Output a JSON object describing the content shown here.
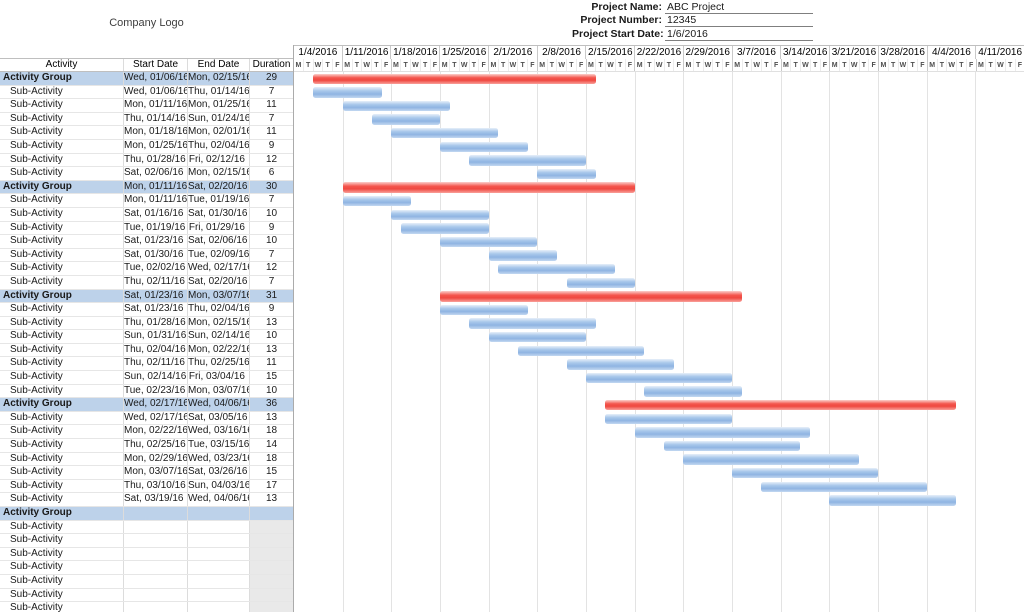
{
  "header": {
    "company_logo": "Company Logo",
    "project_fields": [
      {
        "label": "Project Name:",
        "value": "ABC Project"
      },
      {
        "label": "Project Number:",
        "value": "12345"
      },
      {
        "label": "Project Start Date:",
        "value": "1/6/2016"
      }
    ]
  },
  "table": {
    "columns": [
      "Activity",
      "Start Date",
      "End Date",
      "Duration"
    ]
  },
  "colors": {
    "group_row_bg": "#bdd2ea",
    "group_bar_light": "#fbd0cc",
    "group_bar_dark": "#f4564e",
    "sub_bar_light": "#e7eff9",
    "sub_bar_dark": "#8fb4e2",
    "grid_line": "#e3e3e3",
    "header_line": "#bfbfbf"
  },
  "chart_data": {
    "type": "bar",
    "subtype": "gantt",
    "title": "",
    "x_axis": {
      "unit": "weekdays (Mon-Fri), weekly groups",
      "weeks": [
        "1/4/2016",
        "1/11/2016",
        "1/18/2016",
        "1/25/2016",
        "2/1/2016",
        "2/8/2016",
        "2/15/2016",
        "2/22/2016",
        "2/29/2016",
        "3/7/2016",
        "3/14/2016",
        "3/21/2016",
        "3/28/2016",
        "4/4/2016",
        "4/11/2016"
      ],
      "day_letters": [
        "M",
        "T",
        "W",
        "T",
        "F"
      ]
    },
    "tasks": [
      {
        "name": "Activity Group",
        "kind": "group",
        "start": "Wed, 01/06/16",
        "end": "Mon, 02/15/16",
        "duration": 29,
        "bar_start_day": 2,
        "bar_end_day": 30
      },
      {
        "name": "Sub-Activity",
        "kind": "sub",
        "start": "Wed, 01/06/16",
        "end": "Thu, 01/14/16",
        "duration": 7,
        "bar_start_day": 2,
        "bar_end_day": 8
      },
      {
        "name": "Sub-Activity",
        "kind": "sub",
        "start": "Mon, 01/11/16",
        "end": "Mon, 01/25/16",
        "duration": 11,
        "bar_start_day": 5,
        "bar_end_day": 15
      },
      {
        "name": "Sub-Activity",
        "kind": "sub",
        "start": "Thu, 01/14/16",
        "end": "Sun, 01/24/16",
        "duration": 7,
        "bar_start_day": 8,
        "bar_end_day": 14
      },
      {
        "name": "Sub-Activity",
        "kind": "sub",
        "start": "Mon, 01/18/16",
        "end": "Mon, 02/01/16",
        "duration": 11,
        "bar_start_day": 10,
        "bar_end_day": 20
      },
      {
        "name": "Sub-Activity",
        "kind": "sub",
        "start": "Mon, 01/25/16",
        "end": "Thu, 02/04/16",
        "duration": 9,
        "bar_start_day": 15,
        "bar_end_day": 23
      },
      {
        "name": "Sub-Activity",
        "kind": "sub",
        "start": "Thu, 01/28/16",
        "end": "Fri, 02/12/16",
        "duration": 12,
        "bar_start_day": 18,
        "bar_end_day": 29
      },
      {
        "name": "Sub-Activity",
        "kind": "sub",
        "start": "Sat, 02/06/16",
        "end": "Mon, 02/15/16",
        "duration": 6,
        "bar_start_day": 25,
        "bar_end_day": 30
      },
      {
        "name": "Activity Group",
        "kind": "group",
        "start": "Mon, 01/11/16",
        "end": "Sat, 02/20/16",
        "duration": 30,
        "bar_start_day": 5,
        "bar_end_day": 34
      },
      {
        "name": "Sub-Activity",
        "kind": "sub",
        "start": "Mon, 01/11/16",
        "end": "Tue, 01/19/16",
        "duration": 7,
        "bar_start_day": 5,
        "bar_end_day": 11
      },
      {
        "name": "Sub-Activity",
        "kind": "sub",
        "start": "Sat, 01/16/16",
        "end": "Sat, 01/30/16",
        "duration": 10,
        "bar_start_day": 10,
        "bar_end_day": 19
      },
      {
        "name": "Sub-Activity",
        "kind": "sub",
        "start": "Tue, 01/19/16",
        "end": "Fri, 01/29/16",
        "duration": 9,
        "bar_start_day": 11,
        "bar_end_day": 19
      },
      {
        "name": "Sub-Activity",
        "kind": "sub",
        "start": "Sat, 01/23/16",
        "end": "Sat, 02/06/16",
        "duration": 10,
        "bar_start_day": 15,
        "bar_end_day": 24
      },
      {
        "name": "Sub-Activity",
        "kind": "sub",
        "start": "Sat, 01/30/16",
        "end": "Tue, 02/09/16",
        "duration": 7,
        "bar_start_day": 20,
        "bar_end_day": 26
      },
      {
        "name": "Sub-Activity",
        "kind": "sub",
        "start": "Tue, 02/02/16",
        "end": "Wed, 02/17/16",
        "duration": 12,
        "bar_start_day": 21,
        "bar_end_day": 32
      },
      {
        "name": "Sub-Activity",
        "kind": "sub",
        "start": "Thu, 02/11/16",
        "end": "Sat, 02/20/16",
        "duration": 7,
        "bar_start_day": 28,
        "bar_end_day": 34
      },
      {
        "name": "Activity Group",
        "kind": "group",
        "start": "Sat, 01/23/16",
        "end": "Mon, 03/07/16",
        "duration": 31,
        "bar_start_day": 15,
        "bar_end_day": 45
      },
      {
        "name": "Sub-Activity",
        "kind": "sub",
        "start": "Sat, 01/23/16",
        "end": "Thu, 02/04/16",
        "duration": 9,
        "bar_start_day": 15,
        "bar_end_day": 23
      },
      {
        "name": "Sub-Activity",
        "kind": "sub",
        "start": "Thu, 01/28/16",
        "end": "Mon, 02/15/16",
        "duration": 13,
        "bar_start_day": 18,
        "bar_end_day": 30
      },
      {
        "name": "Sub-Activity",
        "kind": "sub",
        "start": "Sun, 01/31/16",
        "end": "Sun, 02/14/16",
        "duration": 10,
        "bar_start_day": 20,
        "bar_end_day": 29
      },
      {
        "name": "Sub-Activity",
        "kind": "sub",
        "start": "Thu, 02/04/16",
        "end": "Mon, 02/22/16",
        "duration": 13,
        "bar_start_day": 23,
        "bar_end_day": 35
      },
      {
        "name": "Sub-Activity",
        "kind": "sub",
        "start": "Thu, 02/11/16",
        "end": "Thu, 02/25/16",
        "duration": 11,
        "bar_start_day": 28,
        "bar_end_day": 38
      },
      {
        "name": "Sub-Activity",
        "kind": "sub",
        "start": "Sun, 02/14/16",
        "end": "Fri, 03/04/16",
        "duration": 15,
        "bar_start_day": 30,
        "bar_end_day": 44
      },
      {
        "name": "Sub-Activity",
        "kind": "sub",
        "start": "Tue, 02/23/16",
        "end": "Mon, 03/07/16",
        "duration": 10,
        "bar_start_day": 36,
        "bar_end_day": 45
      },
      {
        "name": "Activity Group",
        "kind": "group",
        "start": "Wed, 02/17/16",
        "end": "Wed, 04/06/16",
        "duration": 36,
        "bar_start_day": 32,
        "bar_end_day": 67
      },
      {
        "name": "Sub-Activity",
        "kind": "sub",
        "start": "Wed, 02/17/16",
        "end": "Sat, 03/05/16",
        "duration": 13,
        "bar_start_day": 32,
        "bar_end_day": 44
      },
      {
        "name": "Sub-Activity",
        "kind": "sub",
        "start": "Mon, 02/22/16",
        "end": "Wed, 03/16/16",
        "duration": 18,
        "bar_start_day": 35,
        "bar_end_day": 52
      },
      {
        "name": "Sub-Activity",
        "kind": "sub",
        "start": "Thu, 02/25/16",
        "end": "Tue, 03/15/16",
        "duration": 14,
        "bar_start_day": 38,
        "bar_end_day": 51
      },
      {
        "name": "Sub-Activity",
        "kind": "sub",
        "start": "Mon, 02/29/16",
        "end": "Wed, 03/23/16",
        "duration": 18,
        "bar_start_day": 40,
        "bar_end_day": 57
      },
      {
        "name": "Sub-Activity",
        "kind": "sub",
        "start": "Mon, 03/07/16",
        "end": "Sat, 03/26/16",
        "duration": 15,
        "bar_start_day": 45,
        "bar_end_day": 59
      },
      {
        "name": "Sub-Activity",
        "kind": "sub",
        "start": "Thu, 03/10/16",
        "end": "Sun, 04/03/16",
        "duration": 17,
        "bar_start_day": 48,
        "bar_end_day": 64
      },
      {
        "name": "Sub-Activity",
        "kind": "sub",
        "start": "Sat, 03/19/16",
        "end": "Wed, 04/06/16",
        "duration": 13,
        "bar_start_day": 55,
        "bar_end_day": 67
      },
      {
        "name": "Activity Group",
        "kind": "group",
        "start": "",
        "end": "",
        "duration": null,
        "bar_start_day": null,
        "bar_end_day": null
      },
      {
        "name": "Sub-Activity",
        "kind": "sub",
        "start": "",
        "end": "",
        "duration": null,
        "bar_start_day": null,
        "bar_end_day": null
      },
      {
        "name": "Sub-Activity",
        "kind": "sub",
        "start": "",
        "end": "",
        "duration": null,
        "bar_start_day": null,
        "bar_end_day": null
      },
      {
        "name": "Sub-Activity",
        "kind": "sub",
        "start": "",
        "end": "",
        "duration": null,
        "bar_start_day": null,
        "bar_end_day": null
      },
      {
        "name": "Sub-Activity",
        "kind": "sub",
        "start": "",
        "end": "",
        "duration": null,
        "bar_start_day": null,
        "bar_end_day": null
      },
      {
        "name": "Sub-Activity",
        "kind": "sub",
        "start": "",
        "end": "",
        "duration": null,
        "bar_start_day": null,
        "bar_end_day": null
      },
      {
        "name": "Sub-Activity",
        "kind": "sub",
        "start": "",
        "end": "",
        "duration": null,
        "bar_start_day": null,
        "bar_end_day": null
      },
      {
        "name": "Sub-Activity",
        "kind": "sub",
        "start": "",
        "end": "",
        "duration": null,
        "bar_start_day": null,
        "bar_end_day": null
      }
    ]
  }
}
